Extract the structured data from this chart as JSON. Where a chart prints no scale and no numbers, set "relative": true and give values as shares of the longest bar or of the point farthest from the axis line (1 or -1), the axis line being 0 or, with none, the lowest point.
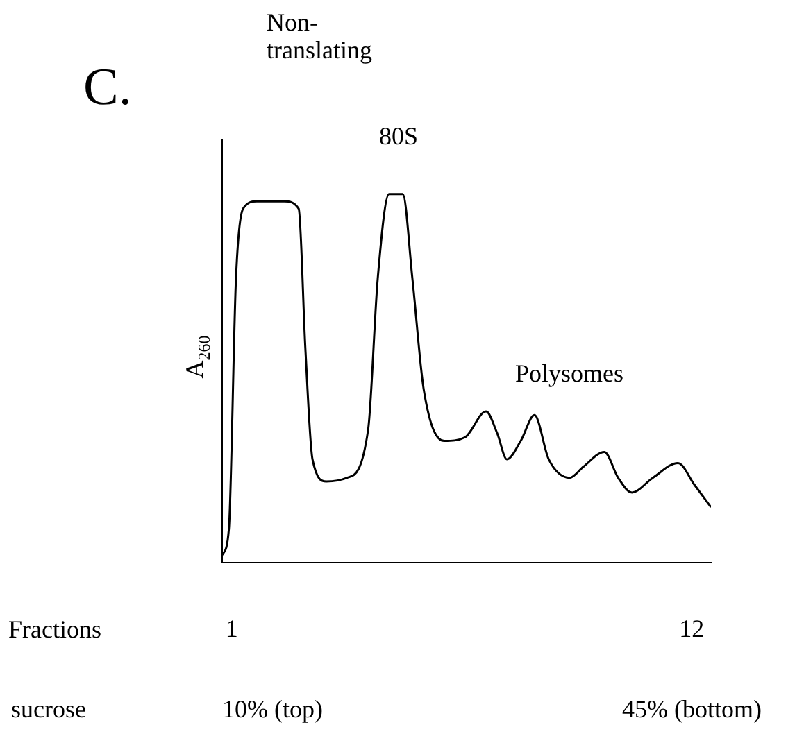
{
  "chart_data": {
    "type": "line",
    "relative": true,
    "xlabel": "Fractions",
    "ylabel": "A$_{260}$",
    "xlim": [
      0.77,
      12.46
    ],
    "xticks": [
      1,
      12
    ],
    "grid": false,
    "legend": false,
    "marker": "none",
    "line_style": "solid",
    "annotations": [
      "C.",
      "Non-translating",
      "80S",
      "Polysomes",
      "sucrose",
      "10% (top)",
      "45% (bottom)"
    ],
    "series": [
      {
        "color": "#000000",
        "x": [
          0.77,
          0.93,
          1.1,
          1.27,
          1.6,
          2.26,
          2.6,
          2.76,
          2.93,
          3.26,
          3.76,
          4.26,
          4.49,
          4.76,
          5.09,
          5.32,
          5.59,
          6.08,
          6.58,
          7.08,
          7.35,
          7.58,
          7.91,
          8.24,
          8.58,
          9.08,
          9.41,
          9.91,
          10.24,
          10.57,
          11.07,
          11.67,
          12.07,
          12.46
        ],
        "values": [
          0.02,
          0.09,
          0.77,
          0.96,
          0.98,
          0.98,
          0.96,
          0.58,
          0.28,
          0.22,
          0.23,
          0.36,
          0.77,
          1,
          1,
          0.77,
          0.47,
          0.33,
          0.34,
          0.41,
          0.35,
          0.28,
          0.33,
          0.4,
          0.28,
          0.23,
          0.26,
          0.3,
          0.23,
          0.19,
          0.23,
          0.27,
          0.21,
          0.15
        ]
      }
    ]
  }
}
